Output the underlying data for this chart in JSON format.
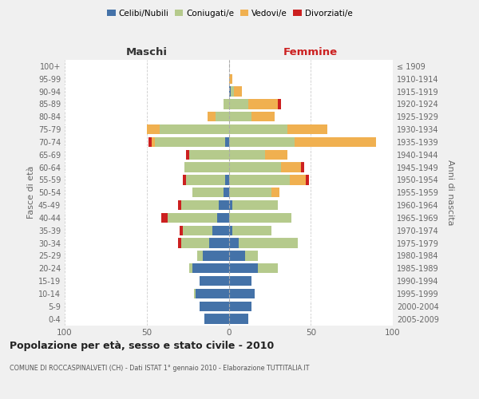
{
  "age_groups": [
    "100+",
    "95-99",
    "90-94",
    "85-89",
    "80-84",
    "75-79",
    "70-74",
    "65-69",
    "60-64",
    "55-59",
    "50-54",
    "45-49",
    "40-44",
    "35-39",
    "30-34",
    "25-29",
    "20-24",
    "15-19",
    "10-14",
    "5-9",
    "0-4"
  ],
  "birth_years": [
    "≤ 1909",
    "1910-1914",
    "1915-1919",
    "1920-1924",
    "1925-1929",
    "1930-1934",
    "1935-1939",
    "1940-1944",
    "1945-1949",
    "1950-1954",
    "1955-1959",
    "1960-1964",
    "1965-1969",
    "1970-1974",
    "1975-1979",
    "1980-1984",
    "1985-1989",
    "1990-1994",
    "1995-1999",
    "2000-2004",
    "2005-2009"
  ],
  "colors": {
    "celibi": "#4472a8",
    "coniugati": "#b5ca8c",
    "vedovi": "#f0b050",
    "divorziati": "#cc2020"
  },
  "maschi": {
    "celibi": [
      0,
      0,
      0,
      0,
      0,
      0,
      2,
      0,
      0,
      2,
      3,
      6,
      7,
      10,
      12,
      16,
      22,
      18,
      20,
      18,
      15
    ],
    "coniugati": [
      0,
      0,
      0,
      3,
      8,
      42,
      43,
      24,
      27,
      24,
      19,
      23,
      30,
      18,
      17,
      3,
      2,
      0,
      1,
      0,
      0
    ],
    "vedovi": [
      0,
      0,
      0,
      0,
      5,
      8,
      2,
      0,
      0,
      0,
      0,
      0,
      0,
      0,
      0,
      0,
      0,
      0,
      0,
      0,
      0
    ],
    "divorziati": [
      0,
      0,
      0,
      0,
      0,
      0,
      2,
      2,
      0,
      2,
      0,
      2,
      4,
      2,
      2,
      0,
      0,
      0,
      0,
      0,
      0
    ]
  },
  "femmine": {
    "celibi": [
      0,
      0,
      1,
      0,
      0,
      0,
      0,
      0,
      0,
      0,
      0,
      2,
      0,
      2,
      6,
      10,
      18,
      14,
      16,
      14,
      12
    ],
    "coniugati": [
      0,
      0,
      2,
      12,
      14,
      36,
      40,
      22,
      32,
      37,
      26,
      28,
      38,
      24,
      36,
      8,
      12,
      0,
      0,
      0,
      0
    ],
    "vedovi": [
      0,
      2,
      5,
      18,
      14,
      24,
      50,
      14,
      12,
      10,
      5,
      0,
      0,
      0,
      0,
      0,
      0,
      0,
      0,
      0,
      0
    ],
    "divorziati": [
      0,
      0,
      0,
      2,
      0,
      0,
      0,
      0,
      2,
      2,
      0,
      0,
      0,
      0,
      0,
      0,
      0,
      0,
      0,
      0,
      0
    ]
  },
  "xlim": 100,
  "title": "Popolazione per età, sesso e stato civile - 2010",
  "subtitle": "COMUNE DI ROCCASPINALVETI (CH) - Dati ISTAT 1° gennaio 2010 - Elaborazione TUTTITALIA.IT",
  "ylabel_left": "Fasce di età",
  "ylabel_right": "Anni di nascita",
  "xlabel_maschi": "Maschi",
  "xlabel_femmine": "Femmine",
  "bg_color": "#f0f0f0",
  "plot_bg": "#ffffff",
  "grid_color": "#cccccc",
  "separator_color": "#ffffff"
}
